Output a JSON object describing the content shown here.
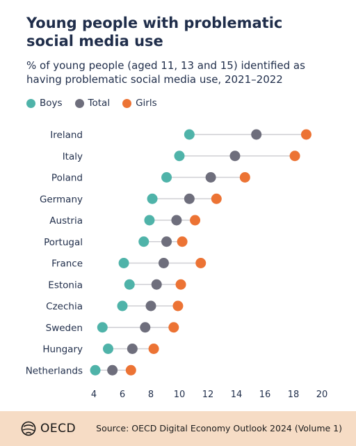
{
  "chart_data": {
    "type": "dot-plot",
    "title": "Young people with problematic social media use",
    "subtitle": "% of young people (aged 11, 13 and 15) identified as having problematic social media use, 2021–2022",
    "categories": [
      "Ireland",
      "Italy",
      "Poland",
      "Germany",
      "Austria",
      "Portugal",
      "France",
      "Estonia",
      "Czechia",
      "Sweden",
      "Hungary",
      "Netherlands"
    ],
    "series": [
      {
        "name": "Boys",
        "color": "#4fb3a9",
        "values": [
          10.7,
          10.0,
          9.1,
          8.1,
          7.9,
          7.5,
          6.1,
          6.5,
          6.0,
          4.6,
          5.0,
          4.1
        ]
      },
      {
        "name": "Total",
        "color": "#6e6e7c",
        "values": [
          15.4,
          13.9,
          12.2,
          10.7,
          9.8,
          9.1,
          8.9,
          8.4,
          8.0,
          7.6,
          6.7,
          5.3
        ]
      },
      {
        "name": "Girls",
        "color": "#ec7334",
        "values": [
          18.9,
          18.1,
          14.6,
          12.6,
          11.1,
          10.2,
          11.5,
          10.1,
          9.9,
          9.6,
          8.2,
          6.6
        ]
      }
    ],
    "xlim": [
      3,
      21
    ],
    "xticks": [
      4,
      6,
      8,
      10,
      12,
      14,
      16,
      18,
      20
    ],
    "legend_position": "top-left",
    "grid": false
  },
  "footer": {
    "logo_text": "OECD",
    "source": "Source: OECD Digital Economy Outlook 2024 (Volume 1)"
  }
}
